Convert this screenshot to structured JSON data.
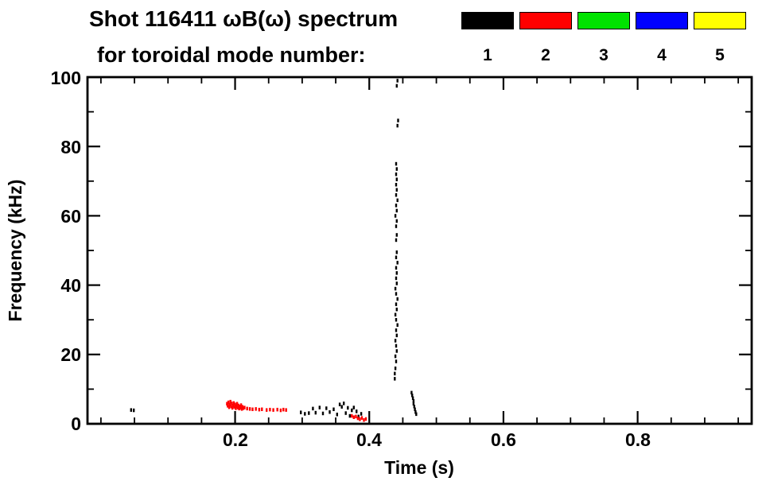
{
  "title": {
    "line1": "Shot 116411 ωB(ω) spectrum",
    "line2": "for toroidal mode number:"
  },
  "legend": {
    "entries": [
      {
        "label": "1",
        "color": "#000000"
      },
      {
        "label": "2",
        "color": "#ff0000"
      },
      {
        "label": "3",
        "color": "#00e300"
      },
      {
        "label": "4",
        "color": "#0000ff"
      },
      {
        "label": "5",
        "color": "#ffff00"
      }
    ]
  },
  "chart_data": {
    "type": "scatter",
    "title": "Shot 116411 ωB(ω) spectrum for toroidal mode number: 1 2 3 4 5",
    "xlabel": "Time (s)",
    "ylabel": "Frequency (kHz)",
    "xlim": [
      -0.02,
      0.97
    ],
    "ylim": [
      0,
      100
    ],
    "grid": false,
    "legend_position": "top-right",
    "xticks": {
      "major": [
        0.2,
        0.4,
        0.6,
        0.8
      ],
      "labels": [
        "0.2",
        "0.4",
        "0.6",
        "0.8"
      ],
      "minor_step": 0.05
    },
    "yticks": {
      "major": [
        0,
        20,
        40,
        60,
        80,
        100
      ],
      "labels": [
        "0",
        "20",
        "40",
        "60",
        "80",
        "100"
      ],
      "minor_step": 10
    },
    "series": [
      {
        "name": "n=1",
        "color": "#000000",
        "points": [
          [
            0.045,
            4.0
          ],
          [
            0.049,
            3.9
          ],
          [
            0.298,
            3.3
          ],
          [
            0.304,
            2.9
          ],
          [
            0.31,
            3.1
          ],
          [
            0.316,
            4.4
          ],
          [
            0.32,
            3.2
          ],
          [
            0.326,
            4.7
          ],
          [
            0.331,
            3.0
          ],
          [
            0.336,
            4.5
          ],
          [
            0.341,
            3.4
          ],
          [
            0.347,
            4.2
          ],
          [
            0.352,
            2.7
          ],
          [
            0.356,
            5.6
          ],
          [
            0.359,
            4.9
          ],
          [
            0.362,
            5.9
          ],
          [
            0.365,
            3.1
          ],
          [
            0.368,
            4.6
          ],
          [
            0.371,
            2.3
          ],
          [
            0.374,
            3.9
          ],
          [
            0.377,
            4.7
          ],
          [
            0.381,
            3.6
          ],
          [
            0.384,
            2.1
          ],
          [
            0.388,
            2.9
          ],
          [
            0.438,
            13
          ],
          [
            0.438,
            14.5
          ],
          [
            0.439,
            16
          ],
          [
            0.44,
            18
          ],
          [
            0.439,
            19.5
          ],
          [
            0.441,
            21
          ],
          [
            0.44,
            22.5
          ],
          [
            0.439,
            24
          ],
          [
            0.441,
            25.5
          ],
          [
            0.44,
            27
          ],
          [
            0.442,
            28.5
          ],
          [
            0.44,
            30
          ],
          [
            0.439,
            31.5
          ],
          [
            0.441,
            33
          ],
          [
            0.44,
            34.5
          ],
          [
            0.442,
            36
          ],
          [
            0.44,
            37.5
          ],
          [
            0.439,
            39
          ],
          [
            0.441,
            40.5
          ],
          [
            0.44,
            42
          ],
          [
            0.441,
            43.5
          ],
          [
            0.44,
            45
          ],
          [
            0.442,
            46.5
          ],
          [
            0.44,
            48
          ],
          [
            0.441,
            49.5
          ],
          [
            0.44,
            53
          ],
          [
            0.441,
            54.5
          ],
          [
            0.44,
            57
          ],
          [
            0.441,
            58.5
          ],
          [
            0.439,
            60
          ],
          [
            0.441,
            61.5
          ],
          [
            0.44,
            63
          ],
          [
            0.442,
            64.5
          ],
          [
            0.44,
            66
          ],
          [
            0.441,
            67.5
          ],
          [
            0.44,
            69
          ],
          [
            0.441,
            70.5
          ],
          [
            0.44,
            72
          ],
          [
            0.441,
            73.5
          ],
          [
            0.44,
            75
          ],
          [
            0.442,
            86
          ],
          [
            0.443,
            87.5
          ],
          [
            0.441,
            97.5
          ],
          [
            0.442,
            99
          ],
          [
            0.463,
            9.0
          ],
          [
            0.464,
            8.2
          ],
          [
            0.465,
            7.4
          ],
          [
            0.466,
            6.6
          ],
          [
            0.466,
            5.8
          ],
          [
            0.467,
            5.0
          ],
          [
            0.468,
            4.2
          ],
          [
            0.469,
            3.4
          ],
          [
            0.47,
            2.8
          ]
        ]
      },
      {
        "name": "n=2",
        "color": "#ff0000",
        "points": [
          [
            0.188,
            5.8
          ],
          [
            0.189,
            5.2
          ],
          [
            0.19,
            6.2
          ],
          [
            0.191,
            4.8
          ],
          [
            0.192,
            5.5
          ],
          [
            0.193,
            6.4
          ],
          [
            0.194,
            5.0
          ],
          [
            0.195,
            5.9
          ],
          [
            0.196,
            4.6
          ],
          [
            0.197,
            5.3
          ],
          [
            0.198,
            6.0
          ],
          [
            0.199,
            4.9
          ],
          [
            0.2,
            5.6
          ],
          [
            0.201,
            4.5
          ],
          [
            0.202,
            5.1
          ],
          [
            0.203,
            5.8
          ],
          [
            0.204,
            4.7
          ],
          [
            0.205,
            5.3
          ],
          [
            0.206,
            4.4
          ],
          [
            0.207,
            5.0
          ],
          [
            0.208,
            4.6
          ],
          [
            0.209,
            5.4
          ],
          [
            0.21,
            4.3
          ],
          [
            0.211,
            4.9
          ],
          [
            0.212,
            4.5
          ],
          [
            0.214,
            4.7
          ],
          [
            0.218,
            4.4
          ],
          [
            0.222,
            4.3
          ],
          [
            0.226,
            4.2
          ],
          [
            0.231,
            4.3
          ],
          [
            0.236,
            4.1
          ],
          [
            0.24,
            4.2
          ],
          [
            0.247,
            4.0
          ],
          [
            0.252,
            4.1
          ],
          [
            0.257,
            4.0
          ],
          [
            0.263,
            4.1
          ],
          [
            0.268,
            3.9
          ],
          [
            0.272,
            4.1
          ],
          [
            0.276,
            4.0
          ],
          [
            0.374,
            2.3
          ],
          [
            0.377,
            1.9
          ],
          [
            0.38,
            2.1
          ],
          [
            0.383,
            1.6
          ],
          [
            0.386,
            1.3
          ],
          [
            0.389,
            1.7
          ],
          [
            0.392,
            1.1
          ],
          [
            0.395,
            1.4
          ]
        ]
      },
      {
        "name": "n=3",
        "color": "#00e300",
        "points": []
      },
      {
        "name": "n=4",
        "color": "#0000ff",
        "points": []
      },
      {
        "name": "n=5",
        "color": "#ffff00",
        "points": []
      }
    ]
  }
}
